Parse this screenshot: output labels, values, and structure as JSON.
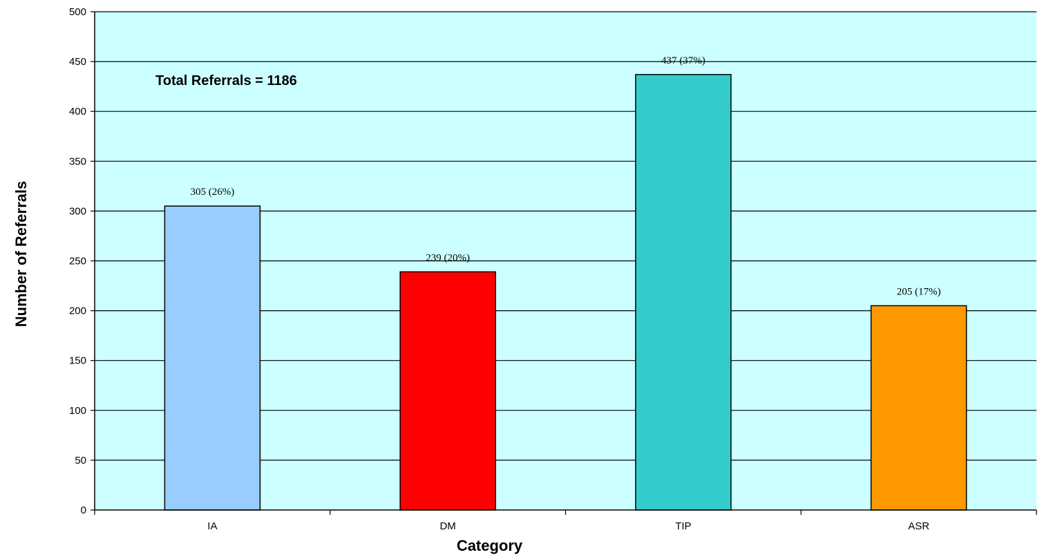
{
  "chart_data": {
    "type": "bar",
    "categories": [
      "IA",
      "DM",
      "TIP",
      "ASR"
    ],
    "values": [
      305,
      239,
      437,
      205
    ],
    "data_labels": [
      "305 (26%)",
      "239 (20%)",
      "437 (37%)",
      "205 (17%)"
    ],
    "bar_colors": [
      "#99ccff",
      "#ff0000",
      "#33cccc",
      "#ff9900"
    ],
    "plot_background": "#ccffff",
    "title": "",
    "xlabel": "Category",
    "ylabel": "Number of Referrals",
    "ylim": [
      0,
      500
    ],
    "yticks": [
      0,
      50,
      100,
      150,
      200,
      250,
      300,
      350,
      400,
      450,
      500
    ],
    "grid": true,
    "legend": "none",
    "annotation": "Total Referrals = 1186"
  }
}
